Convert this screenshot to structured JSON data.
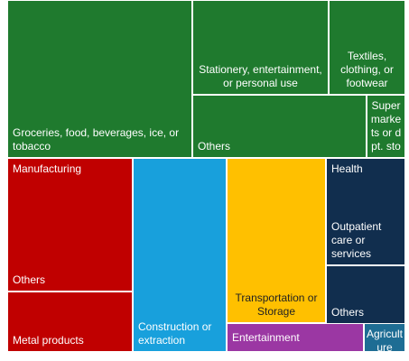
{
  "chart_data": {
    "type": "treemap",
    "colors": {
      "retail": "#1f7a2e",
      "manufacturing": "#c00000",
      "construction": "#18a0dc",
      "transportation": "#ffc000",
      "health": "#112e4e",
      "entertainment": "#9b37a3",
      "agriculture": "#1e6d94"
    },
    "groups": [
      {
        "key": "retail",
        "tiles": [
          {
            "id": "groceries",
            "label": "Groceries, food, beverages, ice, or tobacco"
          },
          {
            "id": "stationery",
            "label": "Stationery, entertainment, or personal use"
          },
          {
            "id": "textiles",
            "label": "Textiles, clothing, or footwear"
          },
          {
            "id": "retail-others",
            "label": "Others"
          },
          {
            "id": "supermarkets",
            "label": "Supermarkets or dpt. stores"
          }
        ]
      },
      {
        "key": "manufacturing",
        "tiles": [
          {
            "id": "manufacturing",
            "label": "Manufacturing"
          },
          {
            "id": "manufacturing-others",
            "label": "Others"
          },
          {
            "id": "metal-products",
            "label": "Metal products"
          }
        ]
      },
      {
        "key": "construction",
        "tiles": [
          {
            "id": "construction",
            "label": "Construction or extraction"
          }
        ]
      },
      {
        "key": "transportation",
        "tiles": [
          {
            "id": "transportation",
            "label": "Transportation or Storage"
          }
        ]
      },
      {
        "key": "health",
        "tiles": [
          {
            "id": "health",
            "label": "Health"
          },
          {
            "id": "outpatient",
            "label": "Outpatient care or services"
          },
          {
            "id": "health-others",
            "label": "Others"
          }
        ]
      },
      {
        "key": "entertainment",
        "tiles": [
          {
            "id": "entertainment",
            "label": "Entertainment"
          }
        ]
      },
      {
        "key": "agriculture",
        "tiles": [
          {
            "id": "agriculture",
            "label": "Agriculture"
          }
        ]
      }
    ]
  }
}
